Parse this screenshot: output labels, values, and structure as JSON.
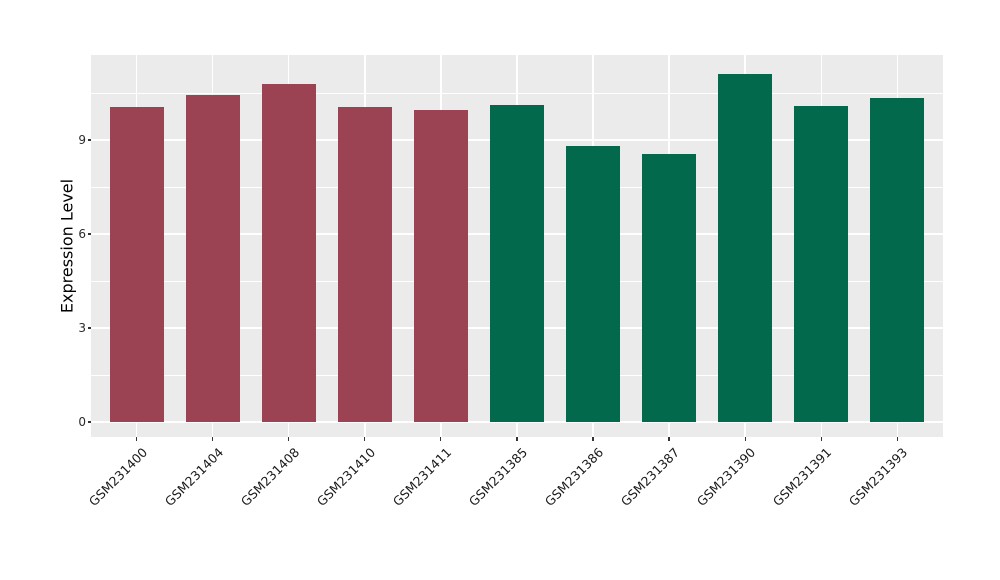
{
  "chart_data": {
    "type": "bar",
    "ylabel": "Expression Level",
    "xlabel": "",
    "categories": [
      "GSM231400",
      "GSM231404",
      "GSM231408",
      "GSM231410",
      "GSM231411",
      "GSM231385",
      "GSM231386",
      "GSM231387",
      "GSM231390",
      "GSM231391",
      "GSM231393"
    ],
    "values": [
      10.06,
      10.44,
      10.78,
      10.06,
      9.96,
      10.12,
      8.81,
      8.55,
      11.11,
      10.1,
      10.33
    ],
    "bar_colors": [
      "#9B4353",
      "#9B4353",
      "#9B4353",
      "#9B4353",
      "#9B4353",
      "#02694C",
      "#02694C",
      "#02694C",
      "#02694C",
      "#02694C",
      "#02694C"
    ],
    "group_colors": {
      "maroon": "#9B4353",
      "green": "#02694C"
    },
    "yticks": [
      0,
      3,
      6,
      9
    ],
    "ytick_labels": [
      "0",
      "3",
      "6",
      "9"
    ],
    "minor_yticks": [
      1.5,
      4.5,
      7.5,
      10.5
    ],
    "ylim": [
      -0.55,
      11.65
    ],
    "grid": "horizontal major+minor, vertical major at category centers",
    "legend": "none",
    "panel_background": "#EBEBEB",
    "grid_color": "#FFFFFF"
  }
}
